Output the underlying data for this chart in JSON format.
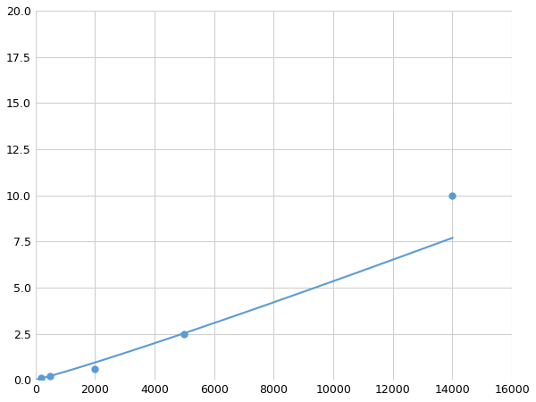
{
  "x_data": [
    200,
    500,
    2000,
    5000,
    14000
  ],
  "y_data": [
    0.1,
    0.2,
    0.6,
    2.5,
    10.0
  ],
  "line_color": "#5B9BD5",
  "marker_color": "#5B9BD5",
  "marker_size": 5,
  "line_width": 1.5,
  "xlim": [
    0,
    16000
  ],
  "ylim": [
    0,
    20.0
  ],
  "xticks": [
    0,
    2000,
    4000,
    6000,
    8000,
    10000,
    12000,
    14000,
    16000
  ],
  "yticks": [
    0.0,
    2.5,
    5.0,
    7.5,
    10.0,
    12.5,
    15.0,
    17.5,
    20.0
  ],
  "grid_color": "#d0d0d0",
  "bg_color": "#ffffff",
  "figure_bg": "#ffffff"
}
